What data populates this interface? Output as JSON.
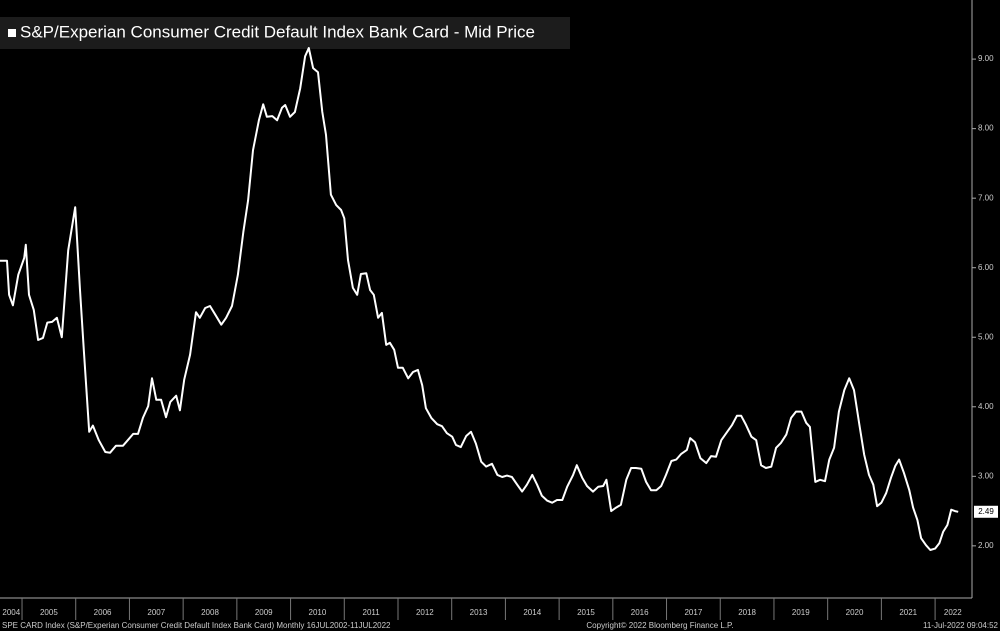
{
  "chart_data": {
    "type": "line",
    "series": [
      {
        "name": "S&P/Experian Consumer Credit Default Index Bank Card - Mid Price",
        "color": "#ffffff",
        "x": [
          2004.59,
          2004.72,
          2004.76,
          2004.83,
          2004.93,
          2005.04,
          2005.07,
          2005.13,
          2005.22,
          2005.3,
          2005.39,
          2005.47,
          2005.56,
          2005.65,
          2005.74,
          2005.86,
          2005.99,
          2006.08,
          2006.15,
          2006.25,
          2006.32,
          2006.43,
          2006.55,
          2006.64,
          2006.75,
          2006.88,
          2006.97,
          2007.07,
          2007.16,
          2007.25,
          2007.35,
          2007.42,
          2007.5,
          2007.59,
          2007.68,
          2007.76,
          2007.87,
          2007.94,
          2008.02,
          2008.13,
          2008.24,
          2008.31,
          2008.41,
          2008.5,
          2008.61,
          2008.71,
          2008.8,
          2008.91,
          2009.02,
          2009.12,
          2009.21,
          2009.3,
          2009.41,
          2009.49,
          2009.56,
          2009.66,
          2009.75,
          2009.84,
          2009.9,
          2009.99,
          2010.08,
          2010.18,
          2010.27,
          2010.34,
          2010.42,
          2010.51,
          2010.59,
          2010.66,
          2010.75,
          2010.85,
          2010.94,
          2011.0,
          2011.07,
          2011.16,
          2011.24,
          2011.31,
          2011.41,
          2011.48,
          2011.55,
          2011.63,
          2011.7,
          2011.78,
          2011.85,
          2011.93,
          2012.0,
          2012.09,
          2012.19,
          2012.28,
          2012.37,
          2012.45,
          2012.52,
          2012.62,
          2012.73,
          2012.82,
          2012.91,
          2013.01,
          2013.08,
          2013.17,
          2013.27,
          2013.36,
          2013.45,
          2013.55,
          2013.64,
          2013.75,
          2013.85,
          2013.94,
          2014.03,
          2014.12,
          2014.22,
          2014.31,
          2014.4,
          2014.5,
          2014.59,
          2014.68,
          2014.78,
          2014.87,
          2014.96,
          2015.06,
          2015.15,
          2015.26,
          2015.33,
          2015.43,
          2015.52,
          2015.63,
          2015.73,
          2015.82,
          2015.88,
          2015.97,
          2016.06,
          2016.15,
          2016.25,
          2016.34,
          2016.43,
          2016.53,
          2016.62,
          2016.71,
          2016.81,
          2016.9,
          2016.99,
          2017.09,
          2017.18,
          2017.27,
          2017.38,
          2017.44,
          2017.53,
          2017.63,
          2017.74,
          2017.83,
          2017.92,
          2018.02,
          2018.13,
          2018.22,
          2018.31,
          2018.39,
          2018.48,
          2018.58,
          2018.67,
          2018.76,
          2018.85,
          2018.95,
          2019.04,
          2019.13,
          2019.23,
          2019.32,
          2019.41,
          2019.51,
          2019.6,
          2019.67,
          2019.77,
          2019.86,
          2019.95,
          2020.03,
          2020.12,
          2020.21,
          2020.31,
          2020.4,
          2020.49,
          2020.59,
          2020.68,
          2020.77,
          2020.85,
          2020.92,
          2021.0,
          2021.09,
          2021.18,
          2021.26,
          2021.33,
          2021.42,
          2021.52,
          2021.59,
          2021.67,
          2021.74,
          2021.83,
          2021.91,
          2022.0,
          2022.08,
          2022.15,
          2022.23,
          2022.3,
          2022.37,
          2022.43
        ],
        "values": [
          6.1,
          6.1,
          5.61,
          5.46,
          5.9,
          6.14,
          6.33,
          5.61,
          5.39,
          4.96,
          4.99,
          5.21,
          5.22,
          5.28,
          5.0,
          6.25,
          6.87,
          5.68,
          4.82,
          3.64,
          3.73,
          3.52,
          3.35,
          3.34,
          3.44,
          3.44,
          3.52,
          3.61,
          3.61,
          3.84,
          4.01,
          4.41,
          4.1,
          4.1,
          3.85,
          4.07,
          4.16,
          3.95,
          4.39,
          4.75,
          5.36,
          5.28,
          5.42,
          5.45,
          5.31,
          5.18,
          5.28,
          5.45,
          5.9,
          6.51,
          6.97,
          7.69,
          8.12,
          8.35,
          8.17,
          8.18,
          8.12,
          8.3,
          8.34,
          8.17,
          8.24,
          8.58,
          9.04,
          9.16,
          8.87,
          8.81,
          8.24,
          7.91,
          7.05,
          6.9,
          6.83,
          6.71,
          6.11,
          5.71,
          5.61,
          5.91,
          5.92,
          5.68,
          5.61,
          5.28,
          5.35,
          4.89,
          4.92,
          4.82,
          4.56,
          4.56,
          4.41,
          4.5,
          4.53,
          4.31,
          3.98,
          3.84,
          3.75,
          3.72,
          3.62,
          3.57,
          3.45,
          3.42,
          3.58,
          3.64,
          3.47,
          3.21,
          3.14,
          3.18,
          3.02,
          2.99,
          3.01,
          2.99,
          2.88,
          2.78,
          2.88,
          3.02,
          2.88,
          2.72,
          2.65,
          2.62,
          2.66,
          2.66,
          2.85,
          3.02,
          3.16,
          2.98,
          2.86,
          2.78,
          2.85,
          2.86,
          2.95,
          2.5,
          2.55,
          2.59,
          2.95,
          3.12,
          3.12,
          3.11,
          2.92,
          2.8,
          2.8,
          2.86,
          3.02,
          3.22,
          3.24,
          3.32,
          3.38,
          3.55,
          3.49,
          3.26,
          3.19,
          3.29,
          3.28,
          3.52,
          3.64,
          3.74,
          3.87,
          3.87,
          3.74,
          3.57,
          3.52,
          3.16,
          3.12,
          3.14,
          3.41,
          3.48,
          3.6,
          3.84,
          3.93,
          3.93,
          3.77,
          3.71,
          2.92,
          2.95,
          2.93,
          3.24,
          3.41,
          3.93,
          4.24,
          4.41,
          4.24,
          3.74,
          3.31,
          3.02,
          2.88,
          2.57,
          2.62,
          2.76,
          2.98,
          3.15,
          3.24,
          3.05,
          2.8,
          2.55,
          2.37,
          2.11,
          2.01,
          1.94,
          1.96,
          2.04,
          2.2,
          2.3,
          2.52,
          2.5,
          2.49
        ]
      }
    ],
    "xlim": [
      2004.59,
      2022.65
    ],
    "ylim": [
      1.25,
      9.85
    ],
    "xticks": [
      2005,
      2006,
      2007,
      2008,
      2009,
      2010,
      2011,
      2012,
      2013,
      2014,
      2015,
      2016,
      2017,
      2018,
      2019,
      2020,
      2021,
      2022
    ],
    "xtick_labels": [
      {
        "value": 2004.8,
        "label": "2004"
      },
      {
        "value": 2005.5,
        "label": "2005"
      },
      {
        "value": 2006.5,
        "label": "2006"
      },
      {
        "value": 2007.5,
        "label": "2007"
      },
      {
        "value": 2008.5,
        "label": "2008"
      },
      {
        "value": 2009.5,
        "label": "2009"
      },
      {
        "value": 2010.5,
        "label": "2010"
      },
      {
        "value": 2011.5,
        "label": "2011"
      },
      {
        "value": 2012.5,
        "label": "2012"
      },
      {
        "value": 2013.5,
        "label": "2013"
      },
      {
        "value": 2014.5,
        "label": "2014"
      },
      {
        "value": 2015.5,
        "label": "2015"
      },
      {
        "value": 2016.5,
        "label": "2016"
      },
      {
        "value": 2017.5,
        "label": "2017"
      },
      {
        "value": 2018.5,
        "label": "2018"
      },
      {
        "value": 2019.5,
        "label": "2019"
      },
      {
        "value": 2020.5,
        "label": "2020"
      },
      {
        "value": 2021.5,
        "label": "2021"
      },
      {
        "value": 2022.33,
        "label": "2022"
      }
    ],
    "yticks": [
      {
        "value": 2,
        "label": "2.00"
      },
      {
        "value": 3,
        "label": "3.00"
      },
      {
        "value": 4,
        "label": "4.00"
      },
      {
        "value": 5,
        "label": "5.00"
      },
      {
        "value": 6,
        "label": "6.00"
      },
      {
        "value": 7,
        "label": "7.00"
      },
      {
        "value": 8,
        "label": "8.00"
      },
      {
        "value": 9,
        "label": "9.00"
      }
    ],
    "footer_left": "SPE CARD Index (S&P/Experian Consumer Credit Default Index Bank Card)  Monthly 16JUL2002-11JUL2022",
    "footer_center": "Copyright© 2022 Bloomberg Finance L.P.",
    "footer_right": "11-Jul-2022 09:04:52"
  }
}
